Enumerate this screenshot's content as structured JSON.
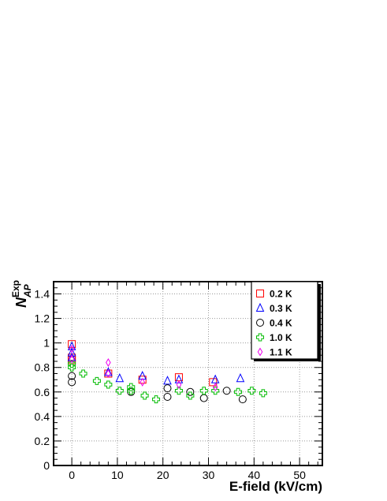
{
  "chart_data": {
    "type": "scatter",
    "xlabel": "E-field (kV/cm)",
    "ylabel_main": "N",
    "ylabel_sub": "AP",
    "ylabel_sup": "Exp",
    "xlim": [
      -4,
      55
    ],
    "ylim": [
      0,
      1.5
    ],
    "x_ticks": [
      0,
      10,
      20,
      30,
      40,
      50
    ],
    "y_ticks": [
      0,
      0.2,
      0.4,
      0.6,
      0.8,
      1,
      1.2,
      1.4
    ],
    "grid": true,
    "legend_position": "top-right",
    "series": [
      {
        "name": "0.2 K",
        "marker": "square",
        "color": "#ff0000",
        "points": [
          [
            0,
            0.99
          ],
          [
            0,
            0.88
          ],
          [
            0,
            0.86
          ],
          [
            8,
            0.75
          ],
          [
            15.5,
            0.7
          ],
          [
            23.5,
            0.72
          ],
          [
            31,
            0.68
          ]
        ]
      },
      {
        "name": "0.3 K",
        "marker": "triangle",
        "color": "#0000ff",
        "points": [
          [
            0,
            0.97
          ],
          [
            0,
            0.92
          ],
          [
            0,
            0.88
          ],
          [
            8,
            0.76
          ],
          [
            10.5,
            0.71
          ],
          [
            15.5,
            0.73
          ],
          [
            21,
            0.69
          ],
          [
            23.5,
            0.7
          ],
          [
            31.5,
            0.7
          ],
          [
            37,
            0.71
          ]
        ]
      },
      {
        "name": "0.4 K",
        "marker": "circle",
        "color": "#000000",
        "points": [
          [
            0,
            0.73
          ],
          [
            0,
            0.68
          ],
          [
            13,
            0.6
          ],
          [
            21,
            0.63
          ],
          [
            21,
            0.56
          ],
          [
            26,
            0.6
          ],
          [
            29,
            0.55
          ],
          [
            34,
            0.61
          ],
          [
            37.5,
            0.54
          ]
        ]
      },
      {
        "name": "1.0 K",
        "marker": "plus",
        "color": "#00bb00",
        "points": [
          [
            0,
            0.83
          ],
          [
            0,
            0.8
          ],
          [
            2.5,
            0.75
          ],
          [
            5.5,
            0.69
          ],
          [
            8,
            0.66
          ],
          [
            10.5,
            0.61
          ],
          [
            13,
            0.64
          ],
          [
            13,
            0.61
          ],
          [
            16,
            0.57
          ],
          [
            18.5,
            0.54
          ],
          [
            23.5,
            0.61
          ],
          [
            26,
            0.57
          ],
          [
            29,
            0.61
          ],
          [
            31.5,
            0.61
          ],
          [
            36.5,
            0.6
          ],
          [
            39.5,
            0.61
          ],
          [
            42,
            0.59
          ]
        ]
      },
      {
        "name": "1.1 K",
        "marker": "diamond",
        "color": "#ee00ee",
        "points": [
          [
            0,
            0.95
          ],
          [
            0,
            0.87
          ],
          [
            8,
            0.84
          ],
          [
            8,
            0.75
          ],
          [
            15.5,
            0.68
          ],
          [
            23.5,
            0.66
          ],
          [
            31.5,
            0.64
          ]
        ]
      }
    ]
  }
}
